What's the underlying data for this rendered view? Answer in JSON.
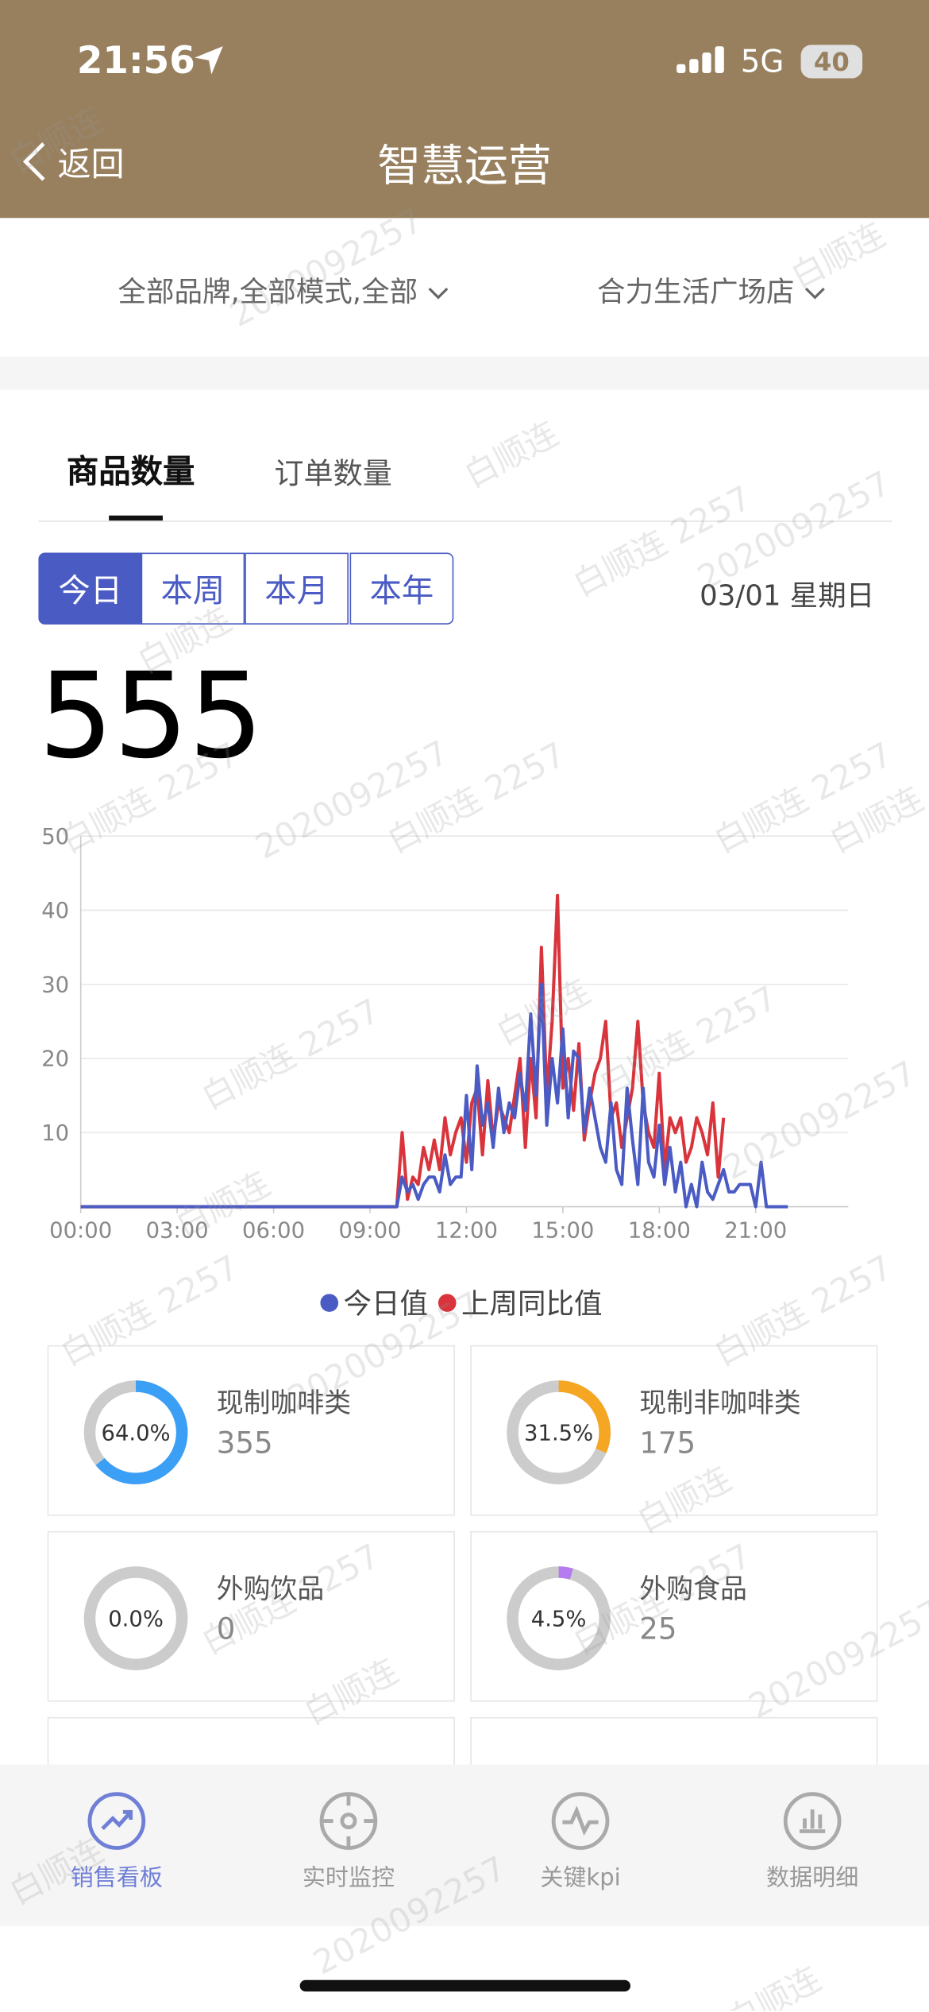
{
  "status_bar": {
    "time": "21:56",
    "network": "5G",
    "battery": "40"
  },
  "nav": {
    "back": "返回",
    "title": "智慧运营"
  },
  "filters": [
    "全部品牌,全部模式,全部",
    "合力生活广场店"
  ],
  "tabs": [
    "商品数量",
    "订单数量"
  ],
  "periods": [
    "今日",
    "本周",
    "本月",
    "本年"
  ],
  "date": "03/01 星期日",
  "total": 555,
  "chart_data": {
    "type": "line",
    "x": [
      0,
      590,
      600,
      610,
      620,
      630,
      640,
      650,
      660,
      670,
      680,
      690,
      700,
      710,
      720,
      730,
      740,
      750,
      760,
      770,
      780,
      790,
      800,
      810,
      820,
      830,
      840,
      850,
      860,
      870,
      880,
      890,
      900,
      910,
      920,
      930,
      940,
      950,
      960,
      970,
      980,
      990,
      1000,
      1010,
      1020,
      1030,
      1040,
      1050,
      1060,
      1070,
      1080,
      1090,
      1100,
      1110,
      1120,
      1130,
      1140,
      1150,
      1160,
      1170,
      1180,
      1190,
      1200,
      1210,
      1220,
      1230,
      1240,
      1250,
      1260,
      1270,
      1280,
      1290,
      1300,
      1310,
      1320
    ],
    "xlim": [
      0,
      1440
    ],
    "xticks": [
      {
        "value": 0,
        "label": "00:00"
      },
      {
        "value": 180,
        "label": "03:00"
      },
      {
        "value": 360,
        "label": "06:00"
      },
      {
        "value": 540,
        "label": "09:00"
      },
      {
        "value": 720,
        "label": "12:00"
      },
      {
        "value": 900,
        "label": "15:00"
      },
      {
        "value": 1080,
        "label": "18:00"
      },
      {
        "value": 1260,
        "label": "21:00"
      }
    ],
    "ylim": [
      0,
      50
    ],
    "yticks": [
      10,
      20,
      30,
      40,
      50
    ],
    "grid": true,
    "legend": "bottom",
    "series": [
      {
        "name": "今日值",
        "color": "#4a5bc4",
        "values": [
          0,
          0,
          4,
          2,
          3,
          1,
          3,
          4,
          4,
          2,
          7,
          3,
          4,
          4,
          15,
          5,
          19,
          11,
          14,
          8,
          16,
          10,
          14,
          12,
          18,
          13,
          26,
          15,
          30,
          11,
          20,
          14,
          24,
          12,
          21,
          20,
          10,
          16,
          12,
          8,
          6,
          14,
          5,
          3,
          16,
          9,
          3,
          16,
          6,
          4,
          11,
          3,
          8,
          2,
          6,
          0,
          3,
          0,
          6,
          2,
          1,
          3,
          5,
          2,
          2,
          3,
          3,
          3,
          0,
          6,
          0,
          0,
          0,
          0,
          0
        ]
      },
      {
        "name": "上周同比值",
        "color": "#d9343c",
        "values": [
          0,
          0,
          10,
          1,
          4,
          3,
          8,
          5,
          9,
          5,
          12,
          7,
          10,
          12,
          6,
          14,
          16,
          7,
          17,
          9,
          14,
          12,
          10,
          15,
          20,
          8,
          20,
          12,
          35,
          15,
          25,
          42,
          16,
          20,
          13,
          22,
          9,
          14,
          18,
          20,
          25,
          12,
          14,
          8,
          12,
          16,
          25,
          14,
          10,
          8,
          18,
          5,
          12,
          10,
          12,
          6,
          8,
          12,
          10,
          7,
          14,
          4,
          12,
          null,
          null,
          null,
          null,
          null,
          null,
          null,
          null,
          null,
          null,
          null,
          null
        ]
      }
    ]
  },
  "categories": [
    {
      "name": "现制咖啡类",
      "percent": 64.0,
      "percent_label": "64.0%",
      "count": 355,
      "color": "#3b9ff5"
    },
    {
      "name": "现制非咖啡类",
      "percent": 31.5,
      "percent_label": "31.5%",
      "count": 175,
      "color": "#f5a623"
    },
    {
      "name": "外购饮品",
      "percent": 0.0,
      "percent_label": "0.0%",
      "count": 0,
      "color": "#b57cf0"
    },
    {
      "name": "外购食品",
      "percent": 4.5,
      "percent_label": "4.5%",
      "count": 25,
      "color": "#b57cf0"
    }
  ],
  "tab_bar": [
    "销售看板",
    "实时监控",
    "关键kpi",
    "数据明细"
  ],
  "watermarks": [
    "白顺连",
    "2020092257",
    "白顺连 2257"
  ]
}
